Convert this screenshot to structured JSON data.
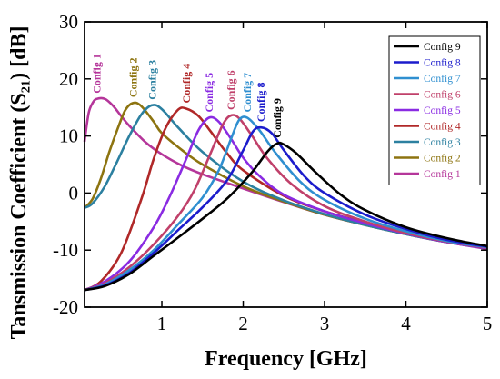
{
  "chart_data": {
    "type": "line",
    "xlabel": "Frequency [GHz]",
    "ylabel": "Tansmission Coefficient (S₂₁) [dB]",
    "xlim": [
      0.05,
      5
    ],
    "ylim": [
      -20,
      30
    ],
    "xticks": [
      1,
      2,
      3,
      4,
      5
    ],
    "yticks": [
      -20,
      -10,
      0,
      10,
      20,
      30
    ],
    "grid": false,
    "legend_position": "top-right",
    "series": [
      {
        "name": "Config 1",
        "color": "#b5369a",
        "peak_label": "Config 1",
        "x": [
          0.05,
          0.1,
          0.15,
          0.2,
          0.3,
          0.4,
          0.5,
          0.6,
          0.8,
          1.0,
          1.25,
          1.5,
          2.0,
          2.5,
          3.0,
          3.5,
          4.0,
          4.5,
          5.0
        ],
        "y": [
          9,
          14,
          15.8,
          16.5,
          16.5,
          15.3,
          13.5,
          11.8,
          8.9,
          6.8,
          4.8,
          3.3,
          0.8,
          -1.6,
          -3.8,
          -5.6,
          -7.2,
          -8.6,
          -9.8
        ]
      },
      {
        "name": "Config 2",
        "color": "#8d7410",
        "peak_label": "Config 2",
        "x": [
          0.05,
          0.15,
          0.25,
          0.35,
          0.45,
          0.55,
          0.65,
          0.75,
          0.9,
          1.0,
          1.25,
          1.5,
          2.0,
          2.5,
          3.0,
          3.5,
          4.0,
          4.5,
          5.0
        ],
        "y": [
          -2.6,
          -1,
          2.5,
          7,
          11,
          14.5,
          15.8,
          15.2,
          12.5,
          10.5,
          7.5,
          5,
          1.2,
          -1.5,
          -3.8,
          -5.6,
          -7.2,
          -8.6,
          -9.7
        ]
      },
      {
        "name": "Config 3",
        "color": "#2c80a0",
        "peak_label": "Config 3",
        "x": [
          0.05,
          0.15,
          0.3,
          0.45,
          0.6,
          0.75,
          0.88,
          1.0,
          1.2,
          1.5,
          2.0,
          2.5,
          3.0,
          3.5,
          4.0,
          4.5,
          5.0
        ],
        "y": [
          -2.6,
          -1.8,
          1.2,
          5.5,
          10,
          13.8,
          15.4,
          14.7,
          11.5,
          7.2,
          2,
          -1.3,
          -3.7,
          -5.6,
          -7.2,
          -8.6,
          -9.7
        ]
      },
      {
        "name": "Config 4",
        "color": "#b02828",
        "peak_label": "Config 4",
        "x": [
          0.05,
          0.25,
          0.5,
          0.75,
          0.9,
          1.05,
          1.2,
          1.3,
          1.45,
          1.6,
          1.8,
          2.0,
          2.5,
          3.0,
          3.5,
          4.0,
          4.5,
          5.0
        ],
        "y": [
          -17,
          -15.5,
          -10.5,
          -1,
          6,
          11.5,
          14.6,
          14.8,
          13.5,
          10.8,
          7,
          4,
          -0.5,
          -3.2,
          -5.2,
          -7,
          -8.5,
          -9.6
        ]
      },
      {
        "name": "Config 5",
        "color": "#8a2be2",
        "peak_label": "Config 5",
        "x": [
          0.05,
          0.3,
          0.6,
          0.9,
          1.1,
          1.3,
          1.45,
          1.58,
          1.7,
          1.85,
          2.0,
          2.2,
          2.5,
          3.0,
          3.5,
          4.0,
          4.5,
          5.0
        ],
        "y": [
          -17,
          -15.5,
          -12,
          -6,
          -0.5,
          6,
          11,
          13.2,
          12.5,
          9.5,
          6.2,
          3,
          -0.3,
          -3.2,
          -5.3,
          -7.1,
          -8.6,
          -9.7
        ]
      },
      {
        "name": "Config 6",
        "color": "#c0406a",
        "peak_label": "Config 6",
        "x": [
          0.05,
          0.3,
          0.6,
          0.9,
          1.2,
          1.4,
          1.6,
          1.75,
          1.85,
          1.95,
          2.1,
          2.3,
          2.6,
          3.0,
          3.5,
          4.0,
          4.5,
          5.0
        ],
        "y": [
          -17,
          -15.8,
          -13,
          -9,
          -4,
          0.5,
          7,
          12,
          13.6,
          13.1,
          10.2,
          6,
          1.5,
          -2.3,
          -5,
          -7,
          -8.5,
          -9.6
        ]
      },
      {
        "name": "Config 7",
        "color": "#2f8fd0",
        "peak_label": "Config 7",
        "x": [
          0.05,
          0.3,
          0.6,
          0.9,
          1.2,
          1.5,
          1.7,
          1.85,
          1.95,
          2.05,
          2.2,
          2.4,
          2.7,
          3.0,
          3.5,
          4.0,
          4.5,
          5.0
        ],
        "y": [
          -17,
          -16,
          -13.5,
          -10,
          -5.5,
          -0.8,
          4,
          9.5,
          12.8,
          13.2,
          11,
          7,
          2,
          -1.2,
          -4.5,
          -6.7,
          -8.4,
          -9.5
        ]
      },
      {
        "name": "Config 8",
        "color": "#1c1ccc",
        "peak_label": "Config 8",
        "x": [
          0.05,
          0.3,
          0.6,
          0.9,
          1.2,
          1.5,
          1.8,
          2.0,
          2.12,
          2.22,
          2.35,
          2.5,
          2.75,
          3.0,
          3.5,
          4.0,
          4.5,
          5.0
        ],
        "y": [
          -17,
          -16.2,
          -14,
          -10.5,
          -6.5,
          -2.5,
          2.2,
          7.5,
          10.8,
          11.5,
          10.5,
          7.5,
          3,
          0,
          -3.8,
          -6.3,
          -8.2,
          -9.4
        ]
      },
      {
        "name": "Config 9",
        "color": "#000000",
        "peak_label": "Config 9",
        "x": [
          0.05,
          0.3,
          0.6,
          0.9,
          1.2,
          1.5,
          1.8,
          2.1,
          2.3,
          2.42,
          2.5,
          2.65,
          2.9,
          3.2,
          3.5,
          4.0,
          4.5,
          5.0
        ],
        "y": [
          -17,
          -16.3,
          -14.2,
          -11,
          -7.8,
          -4.5,
          -1,
          3.5,
          7.3,
          8.7,
          8.5,
          7,
          3.5,
          -0.3,
          -3,
          -6,
          -7.9,
          -9.3
        ]
      }
    ]
  }
}
